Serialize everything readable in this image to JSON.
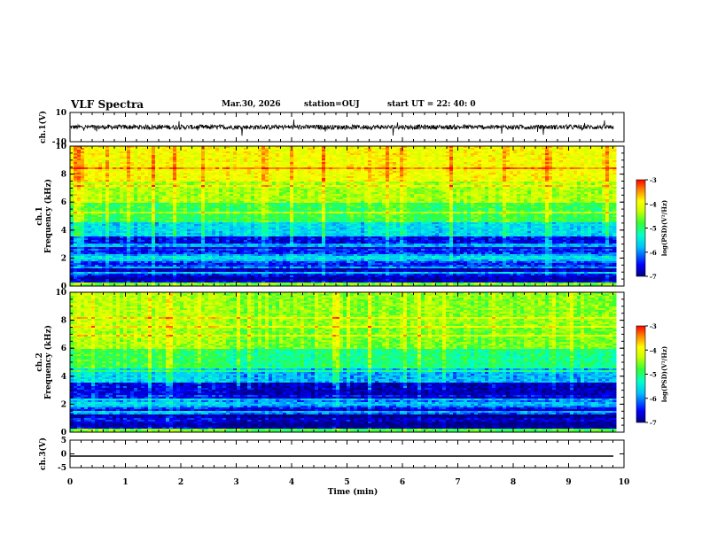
{
  "header": {
    "title": "VLF Spectra",
    "date": "Mar.30, 2026",
    "station": "station=OUJ",
    "start": "start  UT =   22: 40: 0"
  },
  "chart_data": [
    {
      "type": "line",
      "panel": "waveform-ch1",
      "ylabel": "ch.1(V)",
      "ylim": [
        -10,
        10
      ],
      "yticks": [
        "10",
        "-10"
      ],
      "xlim": [
        0,
        10
      ],
      "baseline": 0
    },
    {
      "type": "heatmap",
      "panel": "spectrogram-ch1",
      "ylabel_1": "ch.1",
      "ylabel_2": "Frequency (kHz)",
      "ylim": [
        0,
        10
      ],
      "yticks": [
        "0",
        "2",
        "4",
        "6",
        "8",
        "10"
      ],
      "xlim": [
        0,
        10
      ],
      "colorbar": {
        "label": "log(PSD)(V²/Hz)",
        "range": [
          -7,
          -3
        ],
        "ticks": [
          "-3",
          "-4",
          "-5",
          "-6",
          "-7"
        ]
      }
    },
    {
      "type": "heatmap",
      "panel": "spectrogram-ch2",
      "ylabel_1": "ch.2",
      "ylabel_2": "Frequency (kHz)",
      "ylim": [
        0,
        10
      ],
      "yticks": [
        "0",
        "2",
        "4",
        "6",
        "8",
        "10"
      ],
      "xlim": [
        0,
        10
      ],
      "colorbar": {
        "label": "log(PSD)(V²/Hz)",
        "range": [
          -7,
          -3
        ],
        "ticks": [
          "-3",
          "-4",
          "-5",
          "-6",
          "-7"
        ]
      }
    },
    {
      "type": "line",
      "panel": "waveform-ch3",
      "ylabel": "ch.3(V)",
      "ylim": [
        -5,
        5
      ],
      "yticks": [
        "5",
        "0",
        "-5"
      ],
      "xlim": [
        0,
        10
      ],
      "values": [
        -0.8,
        -0.8
      ]
    }
  ],
  "xaxis": {
    "label": "Time (min)",
    "ticks": [
      "0",
      "1",
      "2",
      "3",
      "4",
      "5",
      "6",
      "7",
      "8",
      "9",
      "10"
    ]
  },
  "colors": {
    "waveform": "#000000",
    "colormap": [
      "#00007f",
      "#0000ff",
      "#00bfff",
      "#00ffcc",
      "#33ff33",
      "#ccff00",
      "#ffff00",
      "#ff8000",
      "#ff0000"
    ]
  }
}
